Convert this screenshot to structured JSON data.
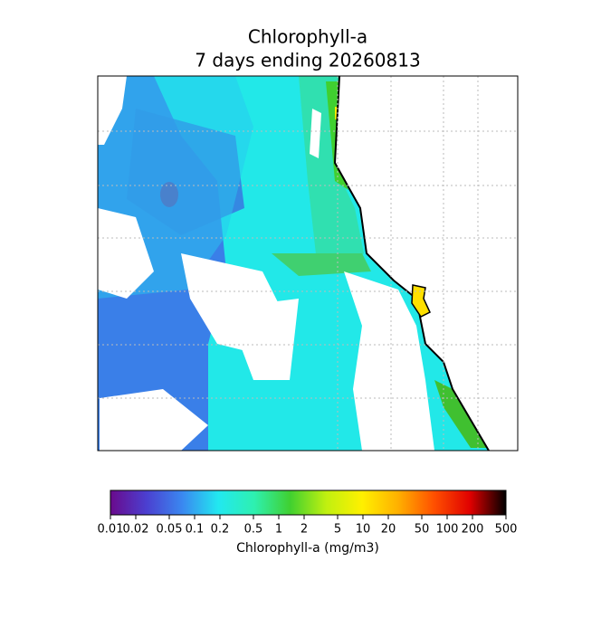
{
  "chart_data": {
    "type": "map",
    "title": "Chlorophyll-a",
    "subtitle": "7 days ending 20260813",
    "colorbar": {
      "label": "Chlorophyll-a (mg/m3)",
      "lim": [
        0.01,
        500
      ],
      "log": true,
      "ticks": [
        0.01,
        0.02,
        0.05,
        0.1,
        0.2,
        0.5,
        1,
        2,
        5,
        10,
        20,
        50,
        100,
        200,
        500
      ],
      "colors": [
        "#6a0a8c",
        "#4b3fd0",
        "#3a88f0",
        "#22e8f0",
        "#2ef0b0",
        "#40d030",
        "#c0f010",
        "#fff000",
        "#ffb000",
        "#ff5000",
        "#e00000",
        "#000000"
      ]
    }
  }
}
